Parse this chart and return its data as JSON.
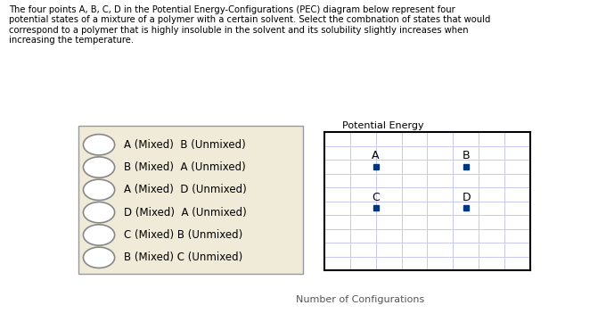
{
  "title_text": "The four points A, B, C, D in the Potential Energy-Configurations (PEC) diagram below represent four\npotential states of a mixture of a polymer with a certain solvent. Select the combnation of states that would\ncorrespond to a polymer that is highly insoluble in the solvent and its solubility slightly increases when\nincreasing the temperature.",
  "pec_title": "Potential Energy",
  "pec_xlabel": "Number of Configurations",
  "point_color": "#003580",
  "grid_color": "#c8c8f0",
  "box_bg_color": "#f0ead8",
  "box_border_color": "#999999",
  "points": {
    "A": [
      2.0,
      7.5
    ],
    "B": [
      5.5,
      7.5
    ],
    "C": [
      2.0,
      4.5
    ],
    "D": [
      5.5,
      4.5
    ]
  },
  "options": [
    "A (Mixed)  B (Unmixed)",
    "B (Mixed)  A (Unmixed)",
    "A (Mixed)  D (Unmixed)",
    "D (Mixed)  A (Unmixed)",
    "C (Mixed) B (Unmixed)",
    "B (Mixed) C (Unmixed)"
  ],
  "plot_xlim": [
    0,
    8
  ],
  "plot_ylim": [
    0,
    10
  ],
  "grid_nx": 9,
  "grid_ny": 11
}
